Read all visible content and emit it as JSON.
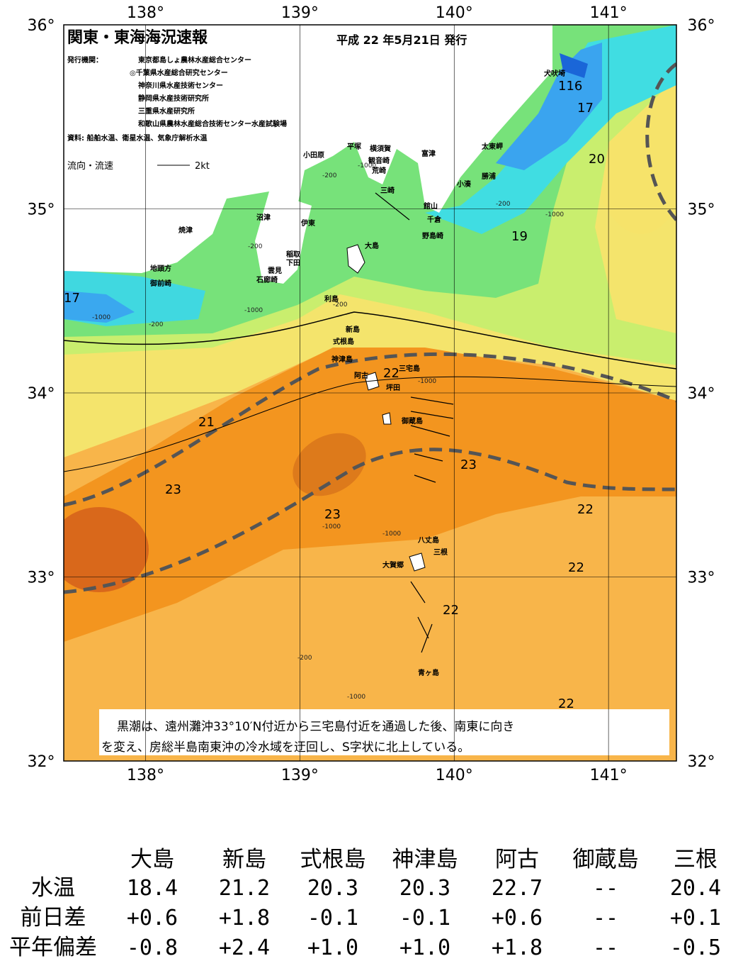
{
  "header": {
    "title": "関東・東海海況速報",
    "date": "平成 22 年5月21日 発行",
    "agency_label": "発行機関：",
    "agencies": [
      "東京都島しょ農林水産総合センター",
      "◎千葉県水産総合研究センター",
      "神奈川県水産技術センター",
      "静岡県水産技術研究所",
      "三重県水産研究所",
      "和歌山県農林水産総合技術センター水産試験場"
    ],
    "source": "資料: 船舶水温、衛星水温、気象庁解析水温",
    "legend_label": "流向・流速",
    "legend_speed": "2kt"
  },
  "map": {
    "lon_range": [
      137.47,
      141.44
    ],
    "lat_range": [
      32,
      36
    ],
    "lon_ticks": [
      {
        "value": 138,
        "label": "138°"
      },
      {
        "value": 139,
        "label": "139°"
      },
      {
        "value": 140,
        "label": "140°"
      },
      {
        "value": 141,
        "label": "141°"
      }
    ],
    "lat_ticks": [
      {
        "value": 32,
        "label": "32°"
      },
      {
        "value": 33,
        "label": "33°"
      },
      {
        "value": 34,
        "label": "34°"
      },
      {
        "value": 35,
        "label": "35°"
      },
      {
        "value": 36,
        "label": "36°"
      }
    ],
    "place_names": [
      "犬吠埼",
      "太東岬",
      "勝浦",
      "小湊",
      "富津",
      "横須賀",
      "観音崎",
      "荒崎",
      "平塚",
      "小田原",
      "三崎",
      "館山",
      "千倉",
      "野島崎",
      "大島",
      "沼津",
      "伊東",
      "焼津",
      "稲取",
      "下田",
      "雲見",
      "石廊崎",
      "地頭方",
      "御前崎",
      "利島",
      "新島",
      "式根島",
      "神津島",
      "阿古",
      "三宅島",
      "坪田",
      "御蔵島",
      "八丈島",
      "三根",
      "大賀郷",
      "青ヶ島"
    ],
    "isotherm_labels": [
      "116",
      17,
      20,
      19,
      17,
      21,
      22,
      23,
      23,
      23,
      22,
      22,
      22,
      22
    ],
    "depth_labels": [
      -200,
      -1000,
      -200,
      -200,
      -1000,
      -200,
      -200,
      -1000,
      -1000,
      -1000,
      -1000,
      -1000,
      -200,
      -1000
    ],
    "note": [
      "黒潮は、遠州灘沖33°10′N付近から三宅島付近を通過した後、南東に向き",
      "を変え、房総半島南東沖の冷水域を迂回し、S字状に北上している。"
    ]
  },
  "table": {
    "columns": [
      "大島",
      "新島",
      "式根島",
      "神津島",
      "阿古",
      "御蔵島",
      "三根"
    ],
    "rows": [
      {
        "label": "水温",
        "values": [
          "18.4",
          "21.2",
          "20.3",
          "20.3",
          "22.7",
          "--",
          "20.4"
        ]
      },
      {
        "label": "前日差",
        "values": [
          "+0.6",
          "+1.8",
          "-0.1",
          "-0.1",
          "+0.6",
          "--",
          "+0.1"
        ]
      },
      {
        "label": "平年偏差",
        "values": [
          "-0.8",
          "+2.4",
          "+1.0",
          "+1.0",
          "+1.8",
          "--",
          "-0.5"
        ]
      }
    ]
  }
}
